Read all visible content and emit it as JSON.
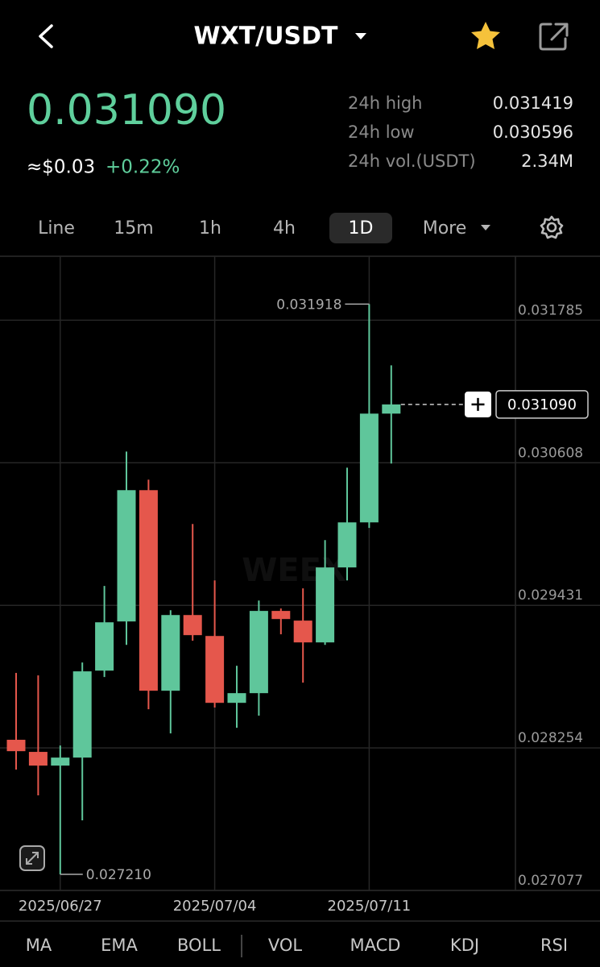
{
  "header": {
    "pair": "WXT/USDT"
  },
  "price": "0.031090",
  "usd_price": "≈$0.03",
  "change": "+0.22%",
  "stats": [
    {
      "label": "24h high",
      "value": "0.031419"
    },
    {
      "label": "24h low",
      "value": "0.030596"
    },
    {
      "label": "24h vol.(USDT)",
      "value": "2.34M"
    }
  ],
  "intervals": [
    "Line",
    "15m",
    "1h",
    "4h",
    "1D",
    "More"
  ],
  "active_interval": 4,
  "indicators": [
    "MA",
    "EMA",
    "BOLL",
    "VOL",
    "MACD",
    "KDJ",
    "RSI"
  ],
  "watermark": "WEEX",
  "chart_data": {
    "type": "candlestick",
    "categories": [
      null,
      null,
      "2025/06/27",
      null,
      null,
      null,
      null,
      null,
      null,
      "2025/07/04",
      null,
      null,
      null,
      null,
      null,
      null,
      "2025/07/11",
      null
    ],
    "open": [
      0.028321,
      0.028221,
      0.028108,
      0.028174,
      0.028892,
      0.029298,
      0.030382,
      0.028726,
      0.029351,
      0.029178,
      0.028626,
      0.028706,
      0.029385,
      0.029305,
      0.029125,
      0.029744,
      0.030116,
      0.031014
    ],
    "high": [
      0.028873,
      0.028853,
      0.028274,
      0.028959,
      0.029591,
      0.030701,
      0.030469,
      0.029391,
      0.030103,
      0.029637,
      0.028932,
      0.029471,
      0.029405,
      0.029571,
      0.02997,
      0.030568,
      0.031918,
      0.031413
    ],
    "low": [
      0.028075,
      0.027862,
      0.02721,
      0.027656,
      0.028839,
      0.029105,
      0.028573,
      0.028374,
      0.029139,
      0.028587,
      0.02842,
      0.02852,
      0.029192,
      0.028793,
      0.029105,
      0.029637,
      0.03007,
      0.030602
    ],
    "close": [
      0.028227,
      0.028108,
      0.028174,
      0.028886,
      0.029291,
      0.030382,
      0.028726,
      0.029351,
      0.029185,
      0.028626,
      0.028706,
      0.029385,
      0.029318,
      0.029125,
      0.029744,
      0.030116,
      0.031014,
      0.03109
    ],
    "up_color": "#5fc69b",
    "down_color": "#e5574c",
    "ylim": [
      0.027077,
      0.0323
    ],
    "yticks": [
      0.031785,
      0.030608,
      0.029431,
      0.028254,
      0.027077
    ],
    "grid": true,
    "last_price": {
      "value": 0.03109,
      "label": "0.031090"
    },
    "high_marker": {
      "value": 0.031918,
      "label": "0.031918"
    },
    "low_marker": {
      "value": 0.02721,
      "label": "0.027210"
    }
  }
}
